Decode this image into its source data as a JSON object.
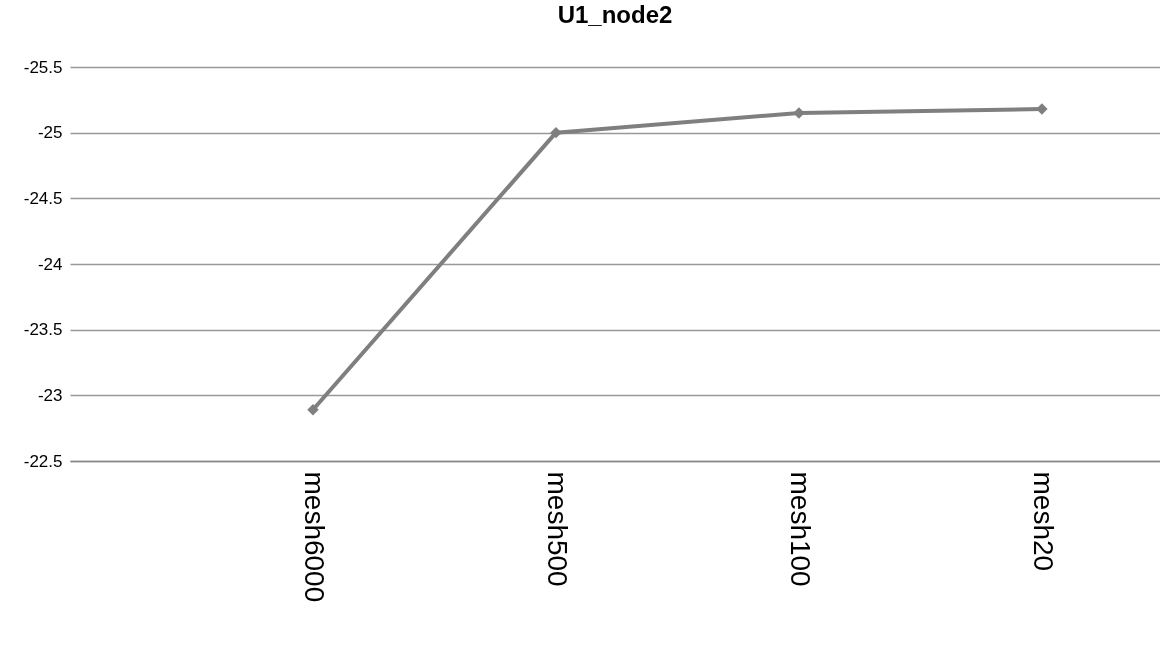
{
  "chart_data": {
    "type": "line",
    "title": "U1_node2",
    "categories": [
      null,
      "mesh6000",
      "mesh500",
      "mesh100",
      "mesh20"
    ],
    "series": [
      {
        "color": "#7f7f7f",
        "values": [
          null,
          -22.89,
          -25.0,
          -25.15,
          -25.18
        ]
      }
    ],
    "ylim": [
      -22.5,
      -25.5
    ],
    "yticks": [
      -25.5,
      -25,
      -24.5,
      -24,
      -23.5,
      -23,
      -22.5
    ],
    "grid": "y",
    "marker": "diamond",
    "line_style": "solid",
    "legend": false
  }
}
